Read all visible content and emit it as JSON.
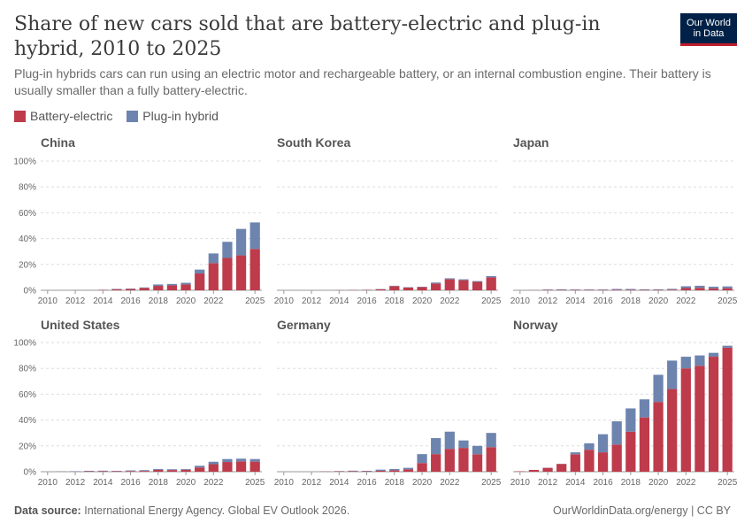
{
  "header": {
    "title": "Share of new cars sold that are battery-electric and plug-in hybrid, 2010 to 2025",
    "subtitle": "Plug-in hybrids cars can run using an electric motor and rechargeable battery, or an internal combustion engine. Their battery is usually smaller than a fully battery-electric.",
    "logo_line1": "Our World",
    "logo_line2": "in Data"
  },
  "legend": {
    "bev_label": "Battery-electric",
    "phev_label": "Plug-in hybrid"
  },
  "colors": {
    "bev": "#be3b4b",
    "phev": "#6d84ae",
    "grid": "#dddddd",
    "axis": "#999999",
    "tick_text": "#666666",
    "panel_title": "#555555",
    "logo_bg": "#002147",
    "logo_accent": "#be1e2d"
  },
  "footer": {
    "source_label": "Data source:",
    "source_text": "International Energy Agency. Global EV Outlook 2026.",
    "right_text": "OurWorldinData.org/energy | CC BY"
  },
  "chart_data": [
    {
      "type": "bar",
      "stacked": true,
      "title": "China",
      "ylim": [
        0,
        100
      ],
      "ytick_labels": [
        "0%",
        "20%",
        "40%",
        "60%",
        "80%",
        "100%"
      ],
      "x": [
        2010,
        2011,
        2012,
        2013,
        2014,
        2015,
        2016,
        2017,
        2018,
        2019,
        2020,
        2021,
        2022,
        2023,
        2024,
        2025
      ],
      "xtick_labels": [
        "2010",
        "2012",
        "2014",
        "2016",
        "2018",
        "2020",
        "2022",
        "2025"
      ],
      "series": [
        {
          "name": "Battery-electric",
          "values": [
            0,
            0,
            0.05,
            0.05,
            0.3,
            0.8,
            1.0,
            1.8,
            3.4,
            3.8,
            4.5,
            13,
            21,
            25,
            27,
            32
          ]
        },
        {
          "name": "Plug-in hybrid",
          "values": [
            0,
            0,
            0.02,
            0.02,
            0.1,
            0.3,
            0.3,
            0.4,
            1.1,
            1.1,
            1.3,
            3,
            7.5,
            12.5,
            20.5,
            20.5
          ]
        }
      ]
    },
    {
      "type": "bar",
      "stacked": true,
      "title": "South Korea",
      "ylim": [
        0,
        100
      ],
      "ytick_labels": [
        "0%",
        "20%",
        "40%",
        "60%",
        "80%",
        "100%"
      ],
      "x": [
        2010,
        2011,
        2012,
        2013,
        2014,
        2015,
        2016,
        2017,
        2018,
        2019,
        2020,
        2021,
        2022,
        2023,
        2024,
        2025
      ],
      "xtick_labels": [
        "2010",
        "2012",
        "2014",
        "2016",
        "2018",
        "2020",
        "2022",
        "2025"
      ],
      "series": [
        {
          "name": "Battery-electric",
          "values": [
            0,
            0,
            0,
            0,
            0.1,
            0.2,
            0.3,
            0.8,
            3.2,
            2.1,
            2.4,
            5.2,
            8.5,
            7.8,
            6.5,
            10
          ]
        },
        {
          "name": "Plug-in hybrid",
          "values": [
            0,
            0,
            0,
            0,
            0,
            0,
            0.1,
            0.2,
            0.3,
            0.3,
            0.3,
            0.8,
            0.8,
            0.7,
            0.6,
            1
          ]
        }
      ]
    },
    {
      "type": "bar",
      "stacked": true,
      "title": "Japan",
      "ylim": [
        0,
        100
      ],
      "ytick_labels": [
        "0%",
        "20%",
        "40%",
        "60%",
        "80%",
        "100%"
      ],
      "x": [
        2010,
        2011,
        2012,
        2013,
        2014,
        2015,
        2016,
        2017,
        2018,
        2019,
        2020,
        2021,
        2022,
        2023,
        2024,
        2025
      ],
      "xtick_labels": [
        "2010",
        "2012",
        "2014",
        "2016",
        "2018",
        "2020",
        "2022",
        "2025"
      ],
      "series": [
        {
          "name": "Battery-electric",
          "values": [
            0,
            0.1,
            0.3,
            0.3,
            0.3,
            0.3,
            0.3,
            0.4,
            0.4,
            0.3,
            0.3,
            0.5,
            1.7,
            1.9,
            1.5,
            1.6
          ]
        },
        {
          "name": "Plug-in hybrid",
          "values": [
            0,
            0,
            0.3,
            0.4,
            0.3,
            0.3,
            0.3,
            0.6,
            0.6,
            0.4,
            0.4,
            0.6,
            1.4,
            1.6,
            1.3,
            1.4
          ]
        }
      ]
    },
    {
      "type": "bar",
      "stacked": true,
      "title": "United States",
      "ylim": [
        0,
        100
      ],
      "ytick_labels": [
        "0%",
        "20%",
        "40%",
        "60%",
        "80%",
        "100%"
      ],
      "x": [
        2010,
        2011,
        2012,
        2013,
        2014,
        2015,
        2016,
        2017,
        2018,
        2019,
        2020,
        2021,
        2022,
        2023,
        2024,
        2025
      ],
      "xtick_labels": [
        "2010",
        "2012",
        "2014",
        "2016",
        "2018",
        "2020",
        "2022",
        "2025"
      ],
      "series": [
        {
          "name": "Battery-electric",
          "values": [
            0,
            0.1,
            0.1,
            0.3,
            0.4,
            0.4,
            0.5,
            0.6,
            1.4,
            1.3,
            1.5,
            3.3,
            5.8,
            7.5,
            8,
            7.8
          ]
        },
        {
          "name": "Plug-in hybrid",
          "values": [
            0,
            0.1,
            0.3,
            0.4,
            0.4,
            0.3,
            0.5,
            0.6,
            0.7,
            0.6,
            0.6,
            1.3,
            1.9,
            2.3,
            2.1,
            2
          ]
        }
      ]
    },
    {
      "type": "bar",
      "stacked": true,
      "title": "Germany",
      "ylim": [
        0,
        100
      ],
      "ytick_labels": [
        "0%",
        "20%",
        "40%",
        "60%",
        "80%",
        "100%"
      ],
      "x": [
        2010,
        2011,
        2012,
        2013,
        2014,
        2015,
        2016,
        2017,
        2018,
        2019,
        2020,
        2021,
        2022,
        2023,
        2024,
        2025
      ],
      "xtick_labels": [
        "2010",
        "2012",
        "2014",
        "2016",
        "2018",
        "2020",
        "2022",
        "2025"
      ],
      "series": [
        {
          "name": "Battery-electric",
          "values": [
            0,
            0,
            0,
            0.2,
            0.3,
            0.4,
            0.3,
            0.7,
            1.1,
            1.8,
            6.7,
            13.6,
            17.7,
            18.4,
            13.5,
            19
          ]
        },
        {
          "name": "Plug-in hybrid",
          "values": [
            0,
            0,
            0,
            0.1,
            0.2,
            0.4,
            0.4,
            0.9,
            1.0,
            1.2,
            6.9,
            12.4,
            13.3,
            5.8,
            6.5,
            11
          ]
        }
      ]
    },
    {
      "type": "bar",
      "stacked": true,
      "title": "Norway",
      "ylim": [
        0,
        100
      ],
      "ytick_labels": [
        "0%",
        "20%",
        "40%",
        "60%",
        "80%",
        "100%"
      ],
      "x": [
        2010,
        2011,
        2012,
        2013,
        2014,
        2015,
        2016,
        2017,
        2018,
        2019,
        2020,
        2021,
        2022,
        2023,
        2024,
        2025
      ],
      "xtick_labels": [
        "2010",
        "2012",
        "2014",
        "2016",
        "2018",
        "2020",
        "2022",
        "2025"
      ],
      "series": [
        {
          "name": "Battery-electric",
          "values": [
            0.3,
            1.4,
            3,
            6,
            13.5,
            17,
            15,
            21,
            31,
            42,
            54,
            64,
            80,
            82,
            89,
            96
          ]
        },
        {
          "name": "Plug-in hybrid",
          "values": [
            0,
            0,
            0.1,
            0.1,
            1.5,
            5,
            14,
            18,
            18,
            14,
            21,
            22,
            9,
            8,
            3,
            1.5
          ]
        }
      ]
    }
  ]
}
